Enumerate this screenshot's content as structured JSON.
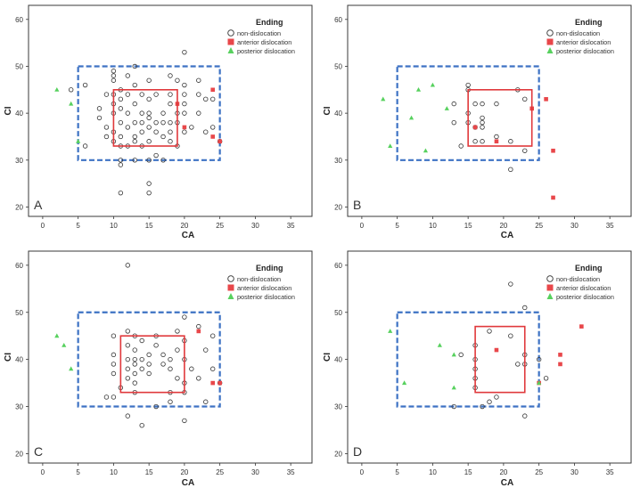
{
  "figure": {
    "colors": {
      "background": "#ffffff",
      "frame": "#3a3a3a",
      "nondislocation": "#333333",
      "anterior": "#e8474a",
      "posterior": "#57d15e",
      "blue_box": "#3d72c4",
      "red_box": "#e0383b",
      "grid_tick": "#333333"
    },
    "legend": {
      "title": "Ending",
      "items": [
        {
          "label": "non-dislocation",
          "marker": "circle-open"
        },
        {
          "label": "anterior dislocation",
          "marker": "square"
        },
        {
          "label": "posterior dislocation",
          "marker": "triangle"
        }
      ]
    }
  },
  "chart_data": [
    {
      "type": "scatter",
      "panel_label": "A",
      "xlabel": "CA",
      "ylabel": "CI",
      "xlim": [
        -2,
        38
      ],
      "ylim": [
        18,
        63
      ],
      "xticks": [
        "0",
        "5",
        "10",
        "15",
        "20",
        "25",
        "30",
        "35"
      ],
      "yticks": [
        "20",
        "30",
        "40",
        "50",
        "60"
      ],
      "legend_position": "top-right",
      "blue_box": {
        "x": [
          5,
          25
        ],
        "y": [
          30,
          50
        ]
      },
      "red_box": {
        "x": [
          10,
          19
        ],
        "y": [
          33,
          45
        ]
      },
      "series": [
        {
          "name": "non-dislocation",
          "points": [
            [
              4,
              45
            ],
            [
              6,
              46
            ],
            [
              6,
              33
            ],
            [
              8,
              39
            ],
            [
              8,
              41
            ],
            [
              9,
              44
            ],
            [
              9,
              37
            ],
            [
              9,
              35
            ],
            [
              10,
              48
            ],
            [
              10,
              49
            ],
            [
              10,
              47
            ],
            [
              10,
              44
            ],
            [
              10,
              42
            ],
            [
              10,
              40
            ],
            [
              10,
              36
            ],
            [
              10,
              34
            ],
            [
              11,
              45
            ],
            [
              11,
              43
            ],
            [
              11,
              41
            ],
            [
              11,
              38
            ],
            [
              11,
              35
            ],
            [
              11,
              33
            ],
            [
              11,
              30
            ],
            [
              11,
              29
            ],
            [
              11,
              23
            ],
            [
              12,
              48
            ],
            [
              12,
              44
            ],
            [
              12,
              40
            ],
            [
              12,
              37
            ],
            [
              12,
              33
            ],
            [
              13,
              50
            ],
            [
              13,
              46
            ],
            [
              13,
              42
            ],
            [
              13,
              38
            ],
            [
              13,
              35
            ],
            [
              13,
              34
            ],
            [
              13,
              30
            ],
            [
              14,
              44
            ],
            [
              14,
              40
            ],
            [
              14,
              38
            ],
            [
              14,
              36
            ],
            [
              14,
              33
            ],
            [
              15,
              47
            ],
            [
              15,
              43
            ],
            [
              15,
              40
            ],
            [
              15,
              39
            ],
            [
              15,
              37
            ],
            [
              15,
              34
            ],
            [
              15,
              30
            ],
            [
              15,
              25
            ],
            [
              15,
              23
            ],
            [
              16,
              44
            ],
            [
              16,
              38
            ],
            [
              16,
              36
            ],
            [
              16,
              31
            ],
            [
              17,
              40
            ],
            [
              17,
              38
            ],
            [
              17,
              35
            ],
            [
              17,
              30
            ],
            [
              18,
              48
            ],
            [
              18,
              44
            ],
            [
              18,
              42
            ],
            [
              18,
              38
            ],
            [
              18,
              36
            ],
            [
              18,
              34
            ],
            [
              19,
              47
            ],
            [
              19,
              40
            ],
            [
              19,
              38
            ],
            [
              19,
              33
            ],
            [
              20,
              53
            ],
            [
              20,
              46
            ],
            [
              20,
              44
            ],
            [
              20,
              42
            ],
            [
              20,
              40
            ],
            [
              20,
              36
            ],
            [
              21,
              37
            ],
            [
              22,
              47
            ],
            [
              22,
              44
            ],
            [
              22,
              40
            ],
            [
              23,
              43
            ],
            [
              23,
              36
            ],
            [
              24,
              43
            ],
            [
              24,
              37
            ],
            [
              25,
              34
            ]
          ]
        },
        {
          "name": "anterior dislocation",
          "points": [
            [
              19,
              42
            ],
            [
              20,
              37
            ],
            [
              24,
              45
            ],
            [
              24,
              35
            ],
            [
              25,
              34
            ]
          ]
        },
        {
          "name": "posterior dislocation",
          "points": [
            [
              2,
              45
            ],
            [
              4,
              42
            ],
            [
              5,
              34
            ]
          ]
        }
      ]
    },
    {
      "type": "scatter",
      "panel_label": "B",
      "xlabel": "CA",
      "ylabel": "CI",
      "xlim": [
        -2,
        38
      ],
      "ylim": [
        18,
        63
      ],
      "xticks": [
        "0",
        "5",
        "10",
        "15",
        "20",
        "25",
        "30",
        "35"
      ],
      "yticks": [
        "20",
        "30",
        "40",
        "50",
        "60"
      ],
      "legend_position": "top-right",
      "blue_box": {
        "x": [
          5,
          25
        ],
        "y": [
          30,
          50
        ]
      },
      "red_box": {
        "x": [
          15,
          24
        ],
        "y": [
          33,
          45
        ]
      },
      "series": [
        {
          "name": "non-dislocation",
          "points": [
            [
              13,
              42
            ],
            [
              13,
              38
            ],
            [
              14,
              33
            ],
            [
              15,
              46
            ],
            [
              15,
              45
            ],
            [
              15,
              40
            ],
            [
              15,
              38
            ],
            [
              16,
              42
            ],
            [
              16,
              37
            ],
            [
              16,
              34
            ],
            [
              17,
              42
            ],
            [
              17,
              39
            ],
            [
              17,
              38
            ],
            [
              17,
              37
            ],
            [
              17,
              34
            ],
            [
              19,
              42
            ],
            [
              19,
              35
            ],
            [
              21,
              34
            ],
            [
              21,
              28
            ],
            [
              22,
              45
            ],
            [
              23,
              43
            ],
            [
              23,
              32
            ]
          ]
        },
        {
          "name": "anterior dislocation",
          "points": [
            [
              16,
              37
            ],
            [
              19,
              34
            ],
            [
              24,
              41
            ],
            [
              26,
              43
            ],
            [
              27,
              32
            ],
            [
              27,
              22
            ]
          ]
        },
        {
          "name": "posterior dislocation",
          "points": [
            [
              3,
              43
            ],
            [
              4,
              33
            ],
            [
              7,
              39
            ],
            [
              8,
              45
            ],
            [
              9,
              32
            ],
            [
              10,
              46
            ],
            [
              12,
              41
            ]
          ]
        }
      ]
    },
    {
      "type": "scatter",
      "panel_label": "C",
      "xlabel": "CA",
      "ylabel": "CI",
      "xlim": [
        -2,
        38
      ],
      "ylim": [
        18,
        63
      ],
      "xticks": [
        "0",
        "5",
        "10",
        "15",
        "20",
        "25",
        "30",
        "35"
      ],
      "yticks": [
        "20",
        "30",
        "40",
        "50",
        "60"
      ],
      "legend_position": "top-right",
      "blue_box": {
        "x": [
          5,
          25
        ],
        "y": [
          30,
          50
        ]
      },
      "red_box": {
        "x": [
          11,
          20
        ],
        "y": [
          33,
          45
        ]
      },
      "series": [
        {
          "name": "non-dislocation",
          "points": [
            [
              9,
              32
            ],
            [
              10,
              45
            ],
            [
              10,
              41
            ],
            [
              10,
              39
            ],
            [
              10,
              37
            ],
            [
              10,
              32
            ],
            [
              11,
              34
            ],
            [
              12,
              60
            ],
            [
              12,
              46
            ],
            [
              12,
              43
            ],
            [
              12,
              40
            ],
            [
              12,
              38
            ],
            [
              12,
              36
            ],
            [
              12,
              28
            ],
            [
              13,
              45
            ],
            [
              13,
              42
            ],
            [
              13,
              40
            ],
            [
              13,
              39
            ],
            [
              13,
              37
            ],
            [
              13,
              35
            ],
            [
              13,
              33
            ],
            [
              14,
              44
            ],
            [
              14,
              40
            ],
            [
              14,
              38
            ],
            [
              14,
              26
            ],
            [
              15,
              41
            ],
            [
              15,
              39
            ],
            [
              15,
              37
            ],
            [
              16,
              45
            ],
            [
              16,
              43
            ],
            [
              16,
              30
            ],
            [
              17,
              41
            ],
            [
              17,
              39
            ],
            [
              18,
              40
            ],
            [
              18,
              38
            ],
            [
              18,
              33
            ],
            [
              18,
              31
            ],
            [
              19,
              46
            ],
            [
              19,
              42
            ],
            [
              19,
              36
            ],
            [
              20,
              49
            ],
            [
              20,
              44
            ],
            [
              20,
              40
            ],
            [
              20,
              35
            ],
            [
              20,
              33
            ],
            [
              20,
              27
            ],
            [
              21,
              38
            ],
            [
              22,
              47
            ],
            [
              22,
              36
            ],
            [
              23,
              42
            ],
            [
              23,
              31
            ],
            [
              24,
              45
            ],
            [
              24,
              38
            ],
            [
              25,
              35
            ]
          ]
        },
        {
          "name": "anterior dislocation",
          "points": [
            [
              22,
              46
            ],
            [
              24,
              35
            ],
            [
              25,
              35
            ]
          ]
        },
        {
          "name": "posterior dislocation",
          "points": [
            [
              2,
              45
            ],
            [
              3,
              43
            ],
            [
              4,
              38
            ]
          ]
        }
      ]
    },
    {
      "type": "scatter",
      "panel_label": "D",
      "xlabel": "CA",
      "ylabel": "CI",
      "xlim": [
        -2,
        38
      ],
      "ylim": [
        18,
        63
      ],
      "xticks": [
        "0",
        "5",
        "10",
        "15",
        "20",
        "25",
        "30",
        "35"
      ],
      "yticks": [
        "20",
        "30",
        "40",
        "50",
        "60"
      ],
      "legend_position": "top-right",
      "blue_box": {
        "x": [
          5,
          25
        ],
        "y": [
          30,
          50
        ]
      },
      "red_box": {
        "x": [
          16,
          23
        ],
        "y": [
          33,
          47
        ]
      },
      "series": [
        {
          "name": "non-dislocation",
          "points": [
            [
              13,
              30
            ],
            [
              14,
              41
            ],
            [
              16,
              43
            ],
            [
              16,
              40
            ],
            [
              16,
              38
            ],
            [
              16,
              36
            ],
            [
              16,
              34
            ],
            [
              17,
              30
            ],
            [
              18,
              46
            ],
            [
              18,
              31
            ],
            [
              19,
              32
            ],
            [
              21,
              56
            ],
            [
              21,
              45
            ],
            [
              22,
              39
            ],
            [
              23,
              51
            ],
            [
              23,
              41
            ],
            [
              23,
              39
            ],
            [
              23,
              28
            ],
            [
              25,
              40
            ],
            [
              26,
              36
            ]
          ]
        },
        {
          "name": "anterior dislocation",
          "points": [
            [
              19,
              42
            ],
            [
              25,
              35
            ],
            [
              28,
              41
            ],
            [
              28,
              39
            ],
            [
              31,
              47
            ]
          ]
        },
        {
          "name": "posterior dislocation",
          "points": [
            [
              4,
              46
            ],
            [
              6,
              35
            ],
            [
              11,
              43
            ],
            [
              13,
              41
            ],
            [
              13,
              34
            ],
            [
              25,
              35
            ]
          ]
        }
      ]
    }
  ]
}
